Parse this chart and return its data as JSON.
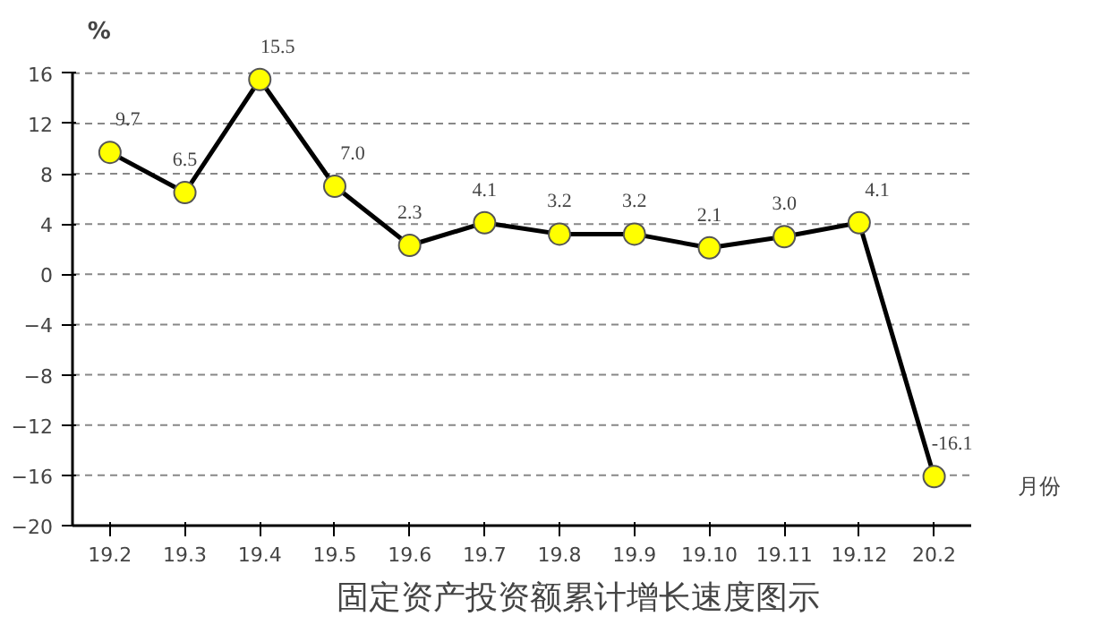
{
  "chart_data": {
    "type": "line",
    "title": "固定资产投资额累计增长速度图示",
    "ylabel": "%",
    "xlabel": "月份",
    "categories": [
      "19.2",
      "19.3",
      "19.4",
      "19.5",
      "19.6",
      "19.7",
      "19.8",
      "19.9",
      "19.10",
      "19.11",
      "19.12",
      "20.2"
    ],
    "series": [
      {
        "color": "#000000",
        "values": [
          9.7,
          6.5,
          15.5,
          7.0,
          2.3,
          4.1,
          3.2,
          3.2,
          2.1,
          3.0,
          4.1,
          -16.1
        ],
        "value_labels": [
          "9.7",
          "6.5",
          "15.5",
          "7.0",
          "2.3",
          "4.1",
          "3.2",
          "3.2",
          "2.1",
          "3.0",
          "4.1",
          "-16.1"
        ]
      }
    ],
    "ylim": [
      -20,
      16
    ],
    "yticks": [
      -20,
      -16,
      -12,
      -8,
      -4,
      0,
      4,
      8,
      12,
      16
    ],
    "grid": "y",
    "marker": "circle",
    "line_style": "solid"
  }
}
